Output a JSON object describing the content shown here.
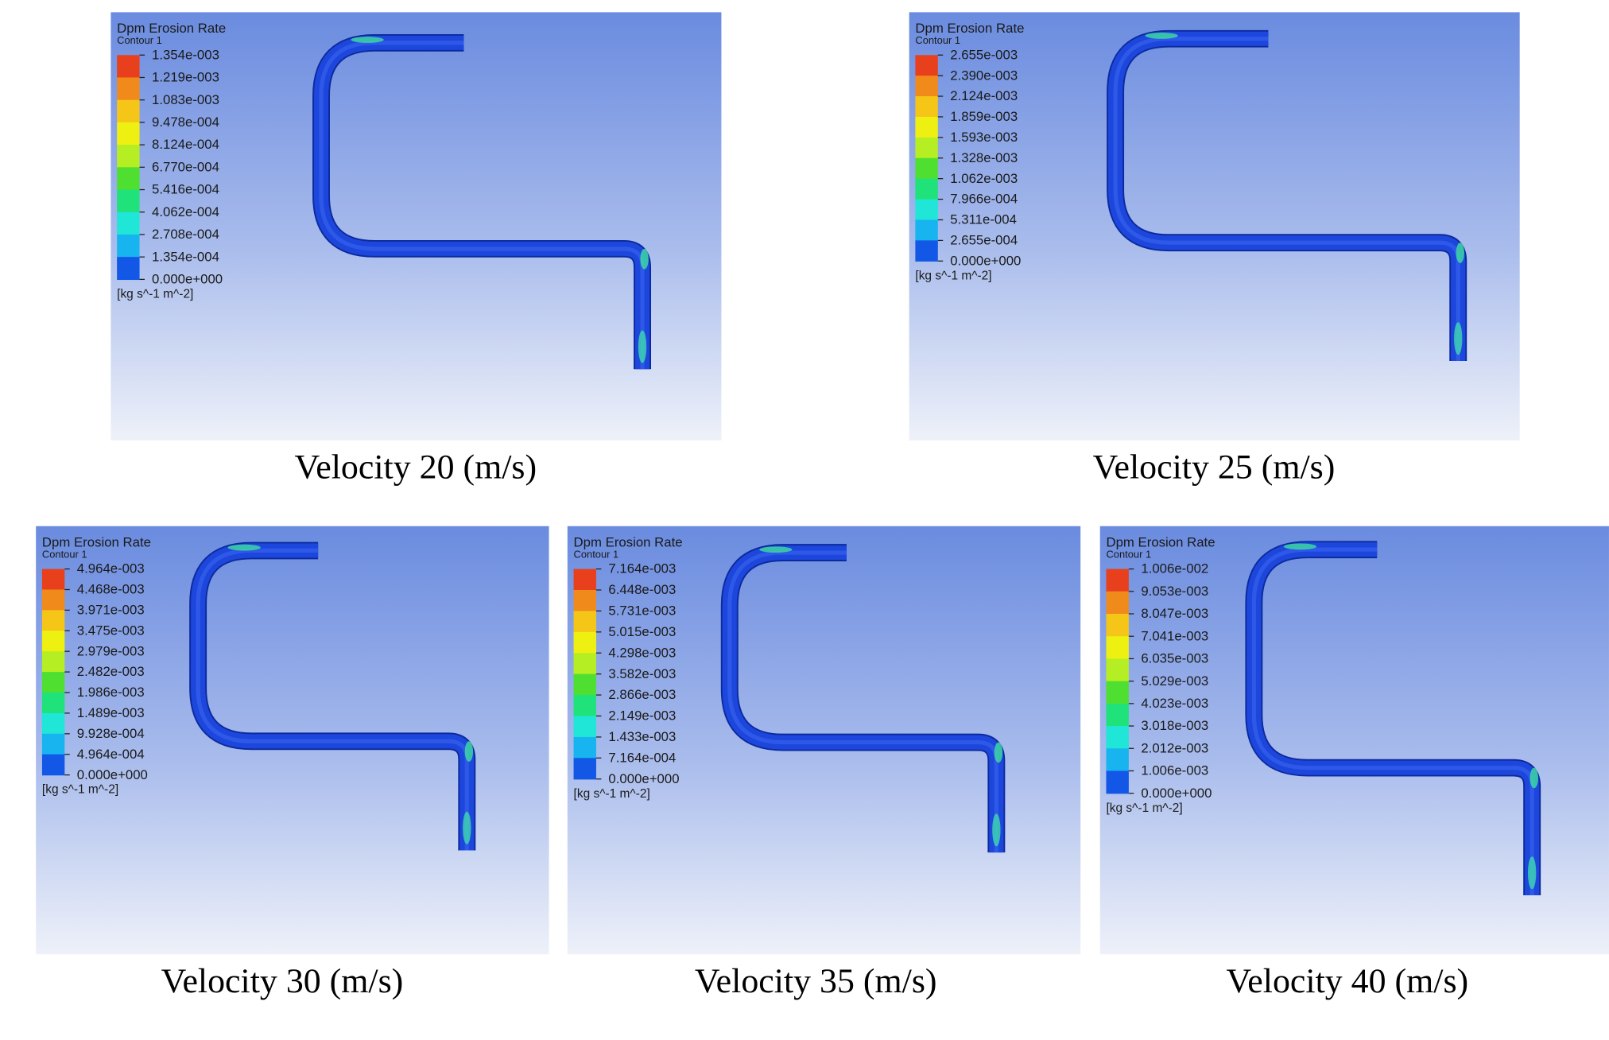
{
  "panels": [
    {
      "legend_title": "Dpm Erosion Rate",
      "legend_subtitle": "Contour 1",
      "unit": "[kg s^-1 m^-2]",
      "caption": "Velocity 20 (m/s)",
      "levels": [
        "1.354e-003",
        "1.219e-003",
        "1.083e-003",
        "9.478e-004",
        "8.124e-004",
        "6.770e-004",
        "5.416e-004",
        "4.062e-004",
        "2.708e-004",
        "1.354e-004",
        "0.000e+000"
      ]
    },
    {
      "legend_title": "Dpm Erosion Rate",
      "legend_subtitle": "Contour 1",
      "unit": "[kg s^-1 m^-2]",
      "caption": "Velocity 25 (m/s)",
      "levels": [
        "2.655e-003",
        "2.390e-003",
        "2.124e-003",
        "1.859e-003",
        "1.593e-003",
        "1.328e-003",
        "1.062e-003",
        "7.966e-004",
        "5.311e-004",
        "2.655e-004",
        "0.000e+000"
      ]
    },
    {
      "legend_title": "Dpm Erosion Rate",
      "legend_subtitle": "Contour 1",
      "unit": "[kg s^-1 m^-2]",
      "caption": "Velocity 30 (m/s)",
      "levels": [
        "4.964e-003",
        "4.468e-003",
        "3.971e-003",
        "3.475e-003",
        "2.979e-003",
        "2.482e-003",
        "1.986e-003",
        "1.489e-003",
        "9.928e-004",
        "4.964e-004",
        "0.000e+000"
      ]
    },
    {
      "legend_title": "Dpm Erosion Rate",
      "legend_subtitle": "Contour 1",
      "unit": "[kg s^-1 m^-2]",
      "caption": "Velocity 35 (m/s)",
      "levels": [
        "7.164e-003",
        "6.448e-003",
        "5.731e-003",
        "5.015e-003",
        "4.298e-003",
        "3.582e-003",
        "2.866e-003",
        "2.149e-003",
        "1.433e-003",
        "7.164e-004",
        "0.000e+000"
      ]
    },
    {
      "legend_title": "Dpm Erosion Rate",
      "legend_subtitle": "Contour 1",
      "unit": "[kg s^-1 m^-2]",
      "caption": "Velocity 40 (m/s)",
      "levels": [
        "1.006e-002",
        "9.053e-003",
        "8.047e-003",
        "7.041e-003",
        "6.035e-003",
        "5.029e-003",
        "4.023e-003",
        "3.018e-003",
        "2.012e-003",
        "1.006e-003",
        "0.000e+000"
      ]
    }
  ]
}
